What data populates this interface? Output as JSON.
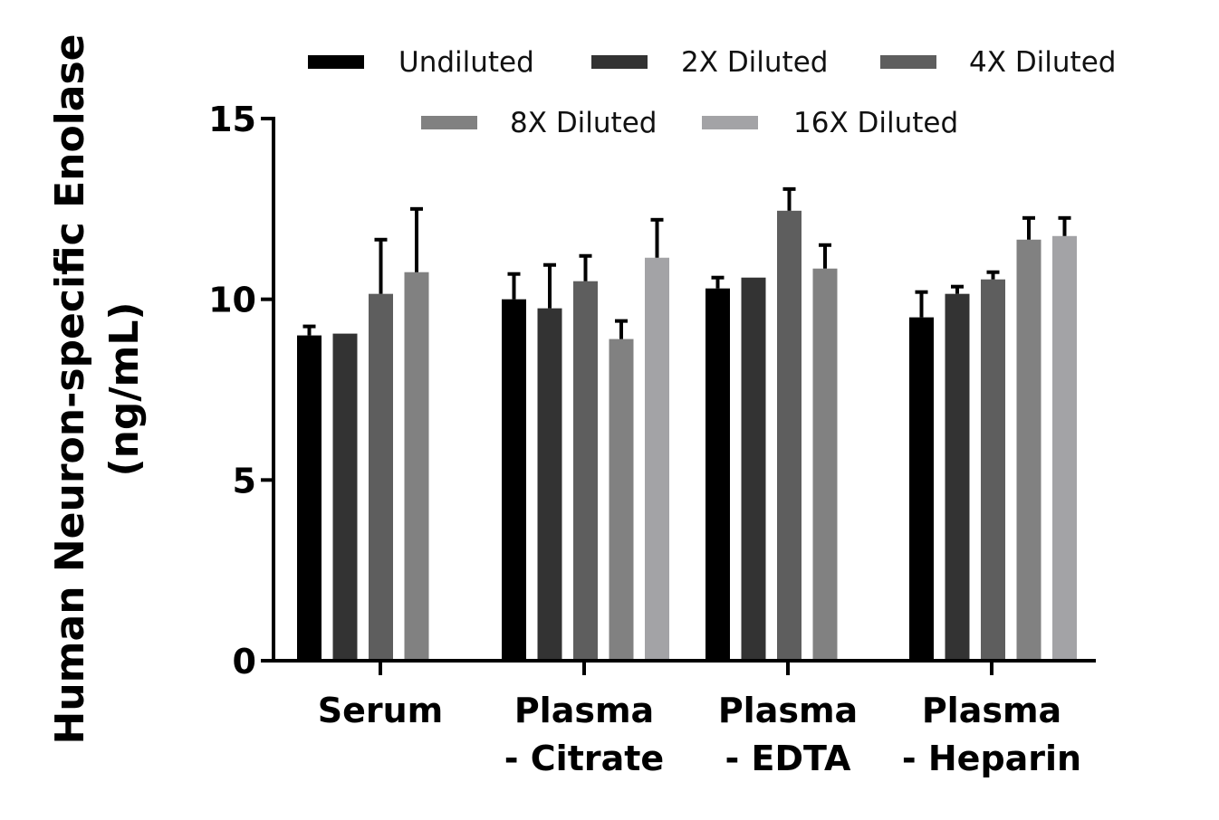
{
  "chart_data": {
    "type": "bar",
    "ylabel_lines": [
      "Human Neuron-specific Enolase",
      "(ng/mL)"
    ],
    "ylim": [
      0,
      15
    ],
    "yticks": [
      "0",
      "5",
      "10",
      "15"
    ],
    "categories": [
      [
        "Serum"
      ],
      [
        "Plasma",
        "- Citrate"
      ],
      [
        "Plasma",
        "- EDTA"
      ],
      [
        "Plasma",
        "- Heparin"
      ]
    ],
    "legend_position": "top",
    "series": [
      {
        "name": "Undiluted",
        "color": "#000000",
        "values": [
          9.0,
          10.0,
          10.3,
          9.5
        ],
        "errors": [
          0.25,
          0.7,
          0.3,
          0.7
        ]
      },
      {
        "name": "2X Diluted",
        "color": "#333333",
        "values": [
          9.05,
          9.75,
          10.6,
          10.15
        ],
        "errors": [
          0,
          1.2,
          0,
          0.2
        ]
      },
      {
        "name": "4X Diluted",
        "color": "#5e5e5e",
        "values": [
          10.15,
          10.5,
          12.45,
          10.55
        ],
        "errors": [
          1.5,
          0.7,
          0.6,
          0.2
        ]
      },
      {
        "name": "8X Diluted",
        "color": "#818181",
        "values": [
          10.75,
          8.9,
          10.85,
          11.65
        ],
        "errors": [
          1.75,
          0.5,
          0.65,
          0.6
        ]
      },
      {
        "name": "16X Diluted",
        "color": "#a3a3a6",
        "values": [
          null,
          11.15,
          null,
          11.75
        ],
        "errors": [
          0,
          1.05,
          0,
          0.5
        ]
      }
    ]
  }
}
